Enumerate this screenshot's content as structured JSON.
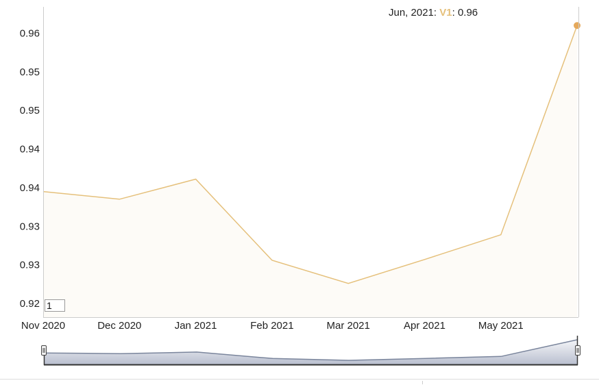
{
  "chart_data": {
    "type": "area",
    "title": "",
    "xlabel": "",
    "ylabel": "",
    "x_tick_labels": [
      "Nov 2020",
      "Dec 2020",
      "Jan 2021",
      "Feb 2021",
      "Mar 2021",
      "Apr 2021",
      "May 2021"
    ],
    "y_tick_labels": [
      "0.96",
      "0.95",
      "0.95",
      "0.94",
      "0.94",
      "0.93",
      "0.93",
      "0.92"
    ],
    "y_ticks": [
      0.96,
      0.955,
      0.95,
      0.945,
      0.94,
      0.935,
      0.93,
      0.925
    ],
    "ylim": [
      0.92425,
      0.96375
    ],
    "grid": false,
    "series": [
      {
        "name": "V1",
        "color": "#e5c07b",
        "fill": "#fdfbf7",
        "x": [
          "Nov 2020",
          "Dec 2020",
          "Jan 2021",
          "Feb 2021",
          "Mar 2021",
          "Apr 2021",
          "May 2021",
          "Jun 2021"
        ],
        "values": [
          0.9395,
          0.9385,
          0.9411,
          0.9306,
          0.9276,
          0.9307,
          0.9339,
          0.961
        ]
      }
    ],
    "tooltip": {
      "label": "Jun, 2021",
      "series": "V1",
      "value": "0.96"
    },
    "navigator": {
      "range_input_value": "1",
      "series_color": "#7a859c",
      "fill_top": "#f4f5f8",
      "fill_bottom": "#b9bfcf"
    }
  }
}
